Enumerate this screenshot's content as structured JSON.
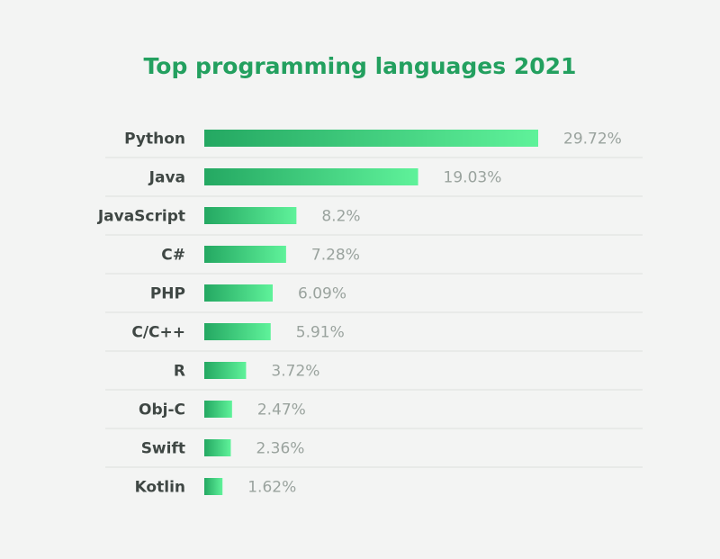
{
  "chart_data": {
    "type": "bar",
    "orientation": "horizontal",
    "title": "Top programming languages 2021",
    "categories": [
      "Python",
      "Java",
      "JavaScript",
      "C#",
      "PHP",
      "C/C++",
      "R",
      "Obj-C",
      "Swift",
      "Kotlin"
    ],
    "values": [
      29.72,
      19.03,
      8.2,
      7.28,
      6.09,
      5.91,
      3.72,
      2.47,
      2.36,
      1.62
    ],
    "value_labels": [
      "29.72%",
      "19.03%",
      "8.2%",
      "7.28%",
      "6.09%",
      "5.91%",
      "3.72%",
      "2.47%",
      "2.36%",
      "1.62%"
    ],
    "xlim": [
      0,
      29.72
    ],
    "grid": false,
    "legend": "none",
    "colors": {
      "title": "#23a05f",
      "category_label": "#3f4744",
      "value_label": "#9aa39e",
      "bar_start": "#24a862",
      "bar_end": "#5ff29a",
      "separator": "#dde0de",
      "background": "#f3f4f3"
    }
  }
}
